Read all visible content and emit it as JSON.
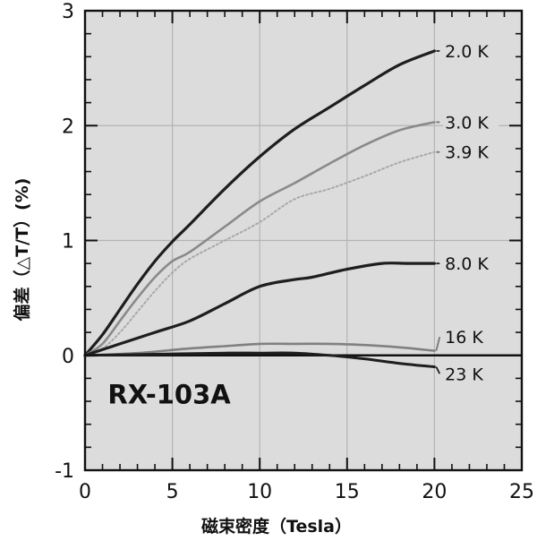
{
  "chart_data": {
    "type": "line",
    "title": "",
    "xlabel": "磁束密度（Tesla）",
    "ylabel": "偏差（△T/T）(%)",
    "annotation": "RX-103A",
    "xlim": [
      0,
      25
    ],
    "ylim": [
      -1,
      3
    ],
    "xticks": [
      0,
      5,
      10,
      15,
      20,
      25
    ],
    "yticks": [
      -1,
      0,
      1,
      2,
      3
    ],
    "x_tick_labels": [
      "0",
      "5",
      "10",
      "15",
      "20",
      "25"
    ],
    "y_tick_labels": [
      "-1",
      "0",
      "1",
      "2",
      "3"
    ],
    "grid": true,
    "background": "#dcdcdc",
    "series": [
      {
        "name": "2.0 K",
        "color": "#1e1e1e",
        "style": "solid",
        "width": 3.2,
        "x": [
          0,
          1,
          2,
          3,
          4,
          5,
          6,
          8,
          10,
          12,
          14,
          16,
          18,
          20
        ],
        "y": [
          0,
          0.18,
          0.4,
          0.62,
          0.82,
          0.99,
          1.14,
          1.45,
          1.73,
          1.97,
          2.16,
          2.35,
          2.53,
          2.65
        ]
      },
      {
        "name": "3.0 K",
        "color": "#8a8a8a",
        "style": "solid",
        "width": 2.6,
        "x": [
          0,
          1,
          2,
          3,
          4,
          5,
          6,
          8,
          10,
          12,
          14,
          16,
          18,
          20
        ],
        "y": [
          0,
          0.1,
          0.3,
          0.5,
          0.68,
          0.82,
          0.9,
          1.12,
          1.34,
          1.5,
          1.67,
          1.83,
          1.96,
          2.03
        ]
      },
      {
        "name": "3.9 K",
        "color": "#a8a8a8",
        "style": "dotted",
        "width": 2.0,
        "x": [
          0,
          1,
          2,
          3,
          4,
          5,
          6,
          8,
          10,
          12,
          14,
          16,
          18,
          20
        ],
        "y": [
          0,
          0.06,
          0.2,
          0.38,
          0.56,
          0.72,
          0.84,
          1.0,
          1.16,
          1.36,
          1.45,
          1.56,
          1.68,
          1.77
        ]
      },
      {
        "name": "8.0 K",
        "color": "#1e1e1e",
        "style": "solid",
        "width": 3.2,
        "x": [
          0,
          2,
          4,
          6,
          8,
          10,
          12,
          13,
          15,
          17,
          18.5,
          20
        ],
        "y": [
          0,
          0.1,
          0.2,
          0.3,
          0.45,
          0.6,
          0.66,
          0.68,
          0.75,
          0.8,
          0.8,
          0.8
        ]
      },
      {
        "name": "16 K",
        "color": "#808080",
        "style": "solid",
        "width": 2.6,
        "x": [
          0,
          3,
          6,
          8,
          10,
          12,
          14,
          16,
          18,
          20
        ],
        "y": [
          0,
          0.02,
          0.06,
          0.08,
          0.1,
          0.1,
          0.1,
          0.09,
          0.07,
          0.04
        ]
      },
      {
        "name": "23 K",
        "color": "#1e1e1e",
        "style": "solid",
        "width": 3.0,
        "x": [
          0,
          4,
          8,
          10,
          12,
          14,
          16,
          18,
          20
        ],
        "y": [
          0,
          0.01,
          0.02,
          0.02,
          0.02,
          0.0,
          -0.03,
          -0.07,
          -0.1
        ]
      }
    ],
    "series_label_y": [
      2.65,
      2.03,
      1.77,
      0.8,
      0.16,
      -0.16
    ]
  }
}
